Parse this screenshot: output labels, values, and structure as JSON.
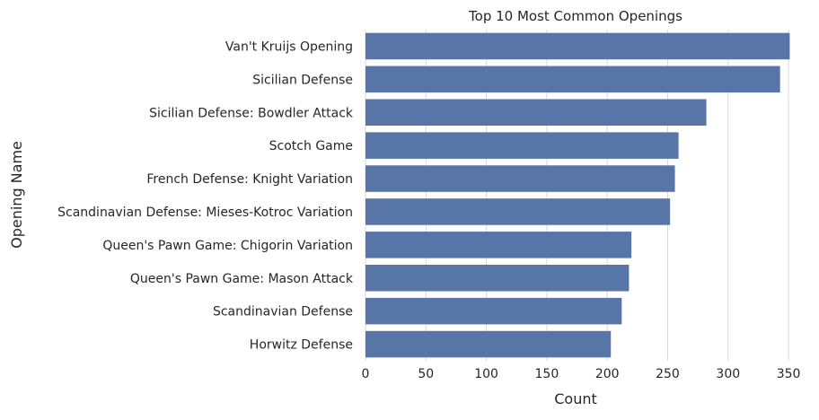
{
  "chart_data": {
    "type": "bar",
    "orientation": "horizontal",
    "title": "Top 10 Most Common Openings",
    "xlabel": "Count",
    "ylabel": "Opening Name",
    "xlim": [
      0,
      370
    ],
    "xticks": [
      0,
      50,
      100,
      150,
      200,
      250,
      300,
      350
    ],
    "grid": true,
    "categories": [
      "Van't Kruijs Opening",
      "Sicilian Defense",
      "Sicilian Defense: Bowdler Attack",
      "Scotch Game",
      "French Defense: Knight Variation",
      "Scandinavian Defense: Mieses-Kotroc Variation",
      "Queen's Pawn Game: Chigorin Variation",
      "Queen's Pawn Game: Mason Attack",
      "Scandinavian Defense",
      "Horwitz Defense"
    ],
    "values": [
      351,
      343,
      282,
      259,
      256,
      252,
      220,
      218,
      212,
      203
    ],
    "bar_color": "#5875a8",
    "grid_color": "#d9d9d9"
  }
}
